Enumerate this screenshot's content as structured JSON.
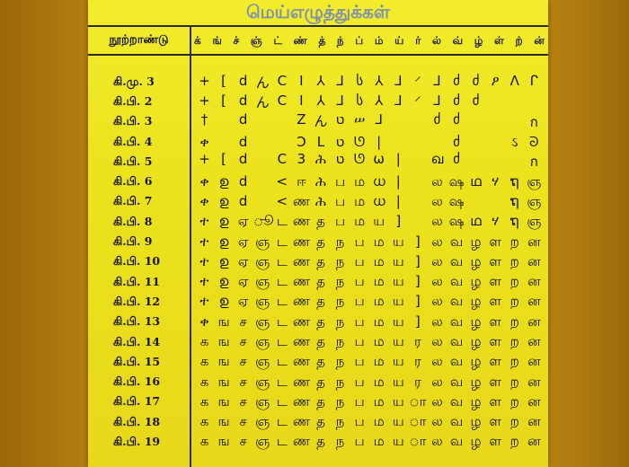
{
  "title": "மெய்எழுத்துக்கள்",
  "header": {
    "century_label": "நூற்றாண்டு",
    "letters": [
      "க்",
      "ங்",
      "ச்",
      "ஞ்",
      "ட்",
      "ண்",
      "த்",
      "ந்",
      "ப்",
      "ம்",
      "ய்",
      "ர்",
      "ல்",
      "வ்",
      "ழ்",
      "ள்",
      "ற்",
      "ன்"
    ]
  },
  "rows": [
    {
      "century": "கி.மு.  3",
      "glyphs": [
        "+",
        "[",
        "d",
        "ん",
        "C",
        "I",
        "⅄",
        "⅃",
        "ს",
        "⅄",
        "⅃",
        "⸍",
        "⅃",
        "ძ",
        "ძ",
        "ዖ",
        "ꓥ",
        "ᒋ"
      ]
    },
    {
      "century": "கி.பி.  2",
      "glyphs": [
        "+",
        "[",
        "d",
        "ん",
        "C",
        "I",
        "⅄",
        "⅃",
        "ს",
        "⅄",
        "⅃",
        "⸍",
        "⅃",
        "ძ",
        "ძ",
        "",
        "",
        ""
      ]
    },
    {
      "century": "கி.பி.  3",
      "glyphs": [
        "†",
        "",
        "d",
        "",
        "",
        "Z",
        "ん",
        "ט",
        "ሠ",
        "⅃",
        "",
        "",
        "ძ",
        "ძ",
        "",
        "",
        "",
        "ก"
      ]
    },
    {
      "century": "கி.பி.  4",
      "glyphs": [
        "ቀ",
        "",
        "d",
        "",
        "",
        "Ͻ",
        "L",
        "ט",
        "ᘎ",
        "|",
        "",
        "",
        "",
        "ძ",
        "",
        "",
        "ઽ",
        "ᘐ"
      ]
    },
    {
      "century": "கி.பி.  5",
      "glyphs": [
        "+",
        "[",
        "d",
        "",
        "C",
        "3",
        "ሕ",
        "ט",
        "ᘎ",
        "ω",
        "|",
        "",
        "ഖ",
        "ძ",
        "",
        "",
        "",
        "ก"
      ]
    },
    {
      "century": "கி.பி.  6",
      "glyphs": [
        "ቀ",
        "ഉ",
        "d",
        "",
        "<",
        "ஈ",
        "ሕ",
        "ப",
        "ம",
        "ധ",
        "|",
        "",
        "ல",
        "ஷ",
        "ഥ",
        "ሃ",
        "ຖ",
        "ஞ"
      ]
    },
    {
      "century": "கி.பி.  7",
      "glyphs": [
        "ቀ",
        "ഉ",
        "d",
        "",
        "<",
        "ண",
        "ሕ",
        "ப",
        "ம",
        "ധ",
        "|",
        "",
        "ல",
        "ஷ",
        "",
        "",
        "ຖ",
        "ஞ"
      ]
    },
    {
      "century": "கி.பி.  8",
      "glyphs": [
        "ተ",
        "ഉ",
        "ஏ",
        "ூ",
        "ட",
        "ண",
        "த",
        "ப",
        "ம",
        "ய",
        "]",
        "",
        "ல",
        "ஷ",
        "ഥ",
        "ሃ",
        "ຖ",
        "ஞ"
      ]
    },
    {
      "century": "கி.பி.  9",
      "glyphs": [
        "ተ",
        "ഉ",
        "ஏ",
        "ஞ",
        "ட",
        "ண",
        "த",
        "ந",
        "ப",
        "ம",
        "ய",
        "]",
        "ல",
        "வ",
        "ழ",
        "ள",
        "ற",
        "ன"
      ]
    },
    {
      "century": "கி.பி.  10",
      "glyphs": [
        "ተ",
        "ഉ",
        "ஏ",
        "ஞ",
        "ட",
        "ண",
        "த",
        "ந",
        "ப",
        "ம",
        "ய",
        "]",
        "ல",
        "வ",
        "ழ",
        "ள",
        "ற",
        "ன"
      ]
    },
    {
      "century": "கி.பி.  11",
      "glyphs": [
        "ተ",
        "ഉ",
        "ஏ",
        "ஞ",
        "ட",
        "ண",
        "த",
        "ந",
        "ப",
        "ம",
        "ய",
        "]",
        "ல",
        "வ",
        "ழ",
        "ள",
        "ற",
        "ன"
      ]
    },
    {
      "century": "கி.பி.  12",
      "glyphs": [
        "ተ",
        "ഉ",
        "ஏ",
        "ஞ",
        "ட",
        "ண",
        "த",
        "ந",
        "ப",
        "ம",
        "ய",
        "]",
        "ல",
        "வ",
        "ழ",
        "ள",
        "ற",
        "ன"
      ]
    },
    {
      "century": "கி.பி.  13",
      "glyphs": [
        "ቀ",
        "ங",
        "ச",
        "ஞ",
        "ட",
        "ண",
        "த",
        "ந",
        "ப",
        "ம",
        "ய",
        "]",
        "ல",
        "வ",
        "ழ",
        "ள",
        "ற",
        "ன"
      ]
    },
    {
      "century": "கி.பி.  14",
      "glyphs": [
        "க",
        "ங",
        "ச",
        "ஞ",
        "ட",
        "ண",
        "த",
        "ந",
        "ப",
        "ம",
        "ய",
        "ர",
        "ல",
        "வ",
        "ழ",
        "ள",
        "ற",
        "ன"
      ]
    },
    {
      "century": "கி.பி.  15",
      "glyphs": [
        "க",
        "ங",
        "ச",
        "ஞ",
        "ட",
        "ண",
        "த",
        "ந",
        "ப",
        "ம",
        "ய",
        "ர",
        "ல",
        "வ",
        "ழ",
        "ள",
        "ற",
        "ன"
      ]
    },
    {
      "century": "கி.பி.  16",
      "glyphs": [
        "க",
        "ங",
        "ச",
        "ஞ",
        "ட",
        "ண",
        "த",
        "ந",
        "ப",
        "ம",
        "ய",
        "ர",
        "ல",
        "வ",
        "ழ",
        "ள",
        "ற",
        "ன"
      ]
    },
    {
      "century": "கி.பி.  17",
      "glyphs": [
        "க",
        "ங",
        "ச",
        "ஞ",
        "ட",
        "ண",
        "த",
        "ந",
        "ப",
        "ம",
        "ய",
        "ா",
        "ல",
        "வ",
        "ழ",
        "ள",
        "ற",
        "ன"
      ]
    },
    {
      "century": "கி.பி.  18",
      "glyphs": [
        "க",
        "ங",
        "ச",
        "ஞ",
        "ட",
        "ண",
        "த",
        "ந",
        "ப",
        "ம",
        "ய",
        "ா",
        "ல",
        "வ",
        "ழ",
        "ள",
        "ற",
        "ன"
      ]
    },
    {
      "century": "கி.பி.  19",
      "glyphs": [
        "க",
        "ங",
        "ச",
        "ஞ",
        "ட",
        "ண",
        "த",
        "ந",
        "ப",
        "ம",
        "ய",
        "ா",
        "ல",
        "வ",
        "ழ",
        "ள",
        "ற",
        "ன"
      ]
    }
  ],
  "colors": {
    "board": "#ede41e",
    "wall": "#a8740c",
    "title": "#7d8fb0",
    "ink": "#15152a"
  }
}
